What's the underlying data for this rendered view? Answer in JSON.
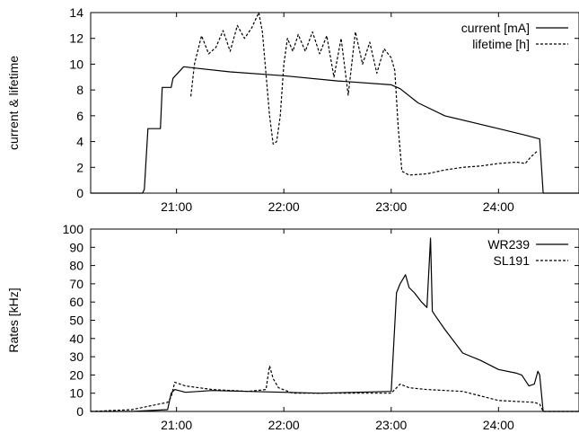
{
  "chart_data": [
    {
      "type": "line",
      "xlabel": "",
      "ylabel": "current & lifetime",
      "x_unit": "time",
      "xlim": [
        "20:12",
        "24:45"
      ],
      "ylim": [
        0,
        14
      ],
      "x_ticks": [
        "21:00",
        "22:00",
        "23:00",
        "24:00"
      ],
      "y_ticks": [
        "0",
        "2",
        "4",
        "6",
        "8",
        "10",
        "12",
        "14"
      ],
      "grid": false,
      "legend_position": "top-right",
      "series": [
        {
          "name": "current [mA]",
          "style": "solid",
          "x": [
            "20:12",
            "20:41",
            "20:42",
            "20:44",
            "20:51",
            "20:52",
            "20:57",
            "20:58",
            "21:04",
            "21:10",
            "21:30",
            "22:00",
            "22:30",
            "23:00",
            "23:05",
            "23:15",
            "23:30",
            "24:00",
            "24:15",
            "24:23",
            "24:25",
            "24:45"
          ],
          "y": [
            0,
            0,
            0.3,
            5.0,
            5.0,
            8.2,
            8.2,
            8.9,
            9.8,
            9.7,
            9.4,
            9.1,
            8.7,
            8.4,
            8.1,
            7.0,
            6.0,
            5.0,
            4.5,
            4.2,
            0,
            0
          ]
        },
        {
          "name": "lifetime [h]",
          "style": "dashed",
          "x": [
            "21:08",
            "21:10",
            "21:14",
            "21:18",
            "21:22",
            "21:26",
            "21:30",
            "21:34",
            "21:38",
            "21:42",
            "21:46",
            "21:48",
            "21:52",
            "21:54",
            "21:56",
            "21:58",
            "22:00",
            "22:02",
            "22:05",
            "22:08",
            "22:12",
            "22:16",
            "22:20",
            "22:24",
            "22:28",
            "22:32",
            "22:36",
            "22:40",
            "22:44",
            "22:48",
            "22:52",
            "22:56",
            "23:00",
            "23:02",
            "23:04",
            "23:06",
            "23:10",
            "23:20",
            "23:30",
            "23:40",
            "23:50",
            "24:00",
            "24:10",
            "24:15",
            "24:18",
            "24:22"
          ],
          "y": [
            7.5,
            10.0,
            12.2,
            10.8,
            11.3,
            12.6,
            11.0,
            13.0,
            12.0,
            12.8,
            14.0,
            12.5,
            6.0,
            3.8,
            4.0,
            6.0,
            10.0,
            12.0,
            11.0,
            12.3,
            11.0,
            12.5,
            10.8,
            12.2,
            9.0,
            12.0,
            7.6,
            12.5,
            10.0,
            11.7,
            9.3,
            11.2,
            10.5,
            9.5,
            5.0,
            1.7,
            1.4,
            1.5,
            1.8,
            2.0,
            2.1,
            2.3,
            2.4,
            2.3,
            2.8,
            3.3
          ]
        }
      ]
    },
    {
      "type": "line",
      "xlabel": "",
      "ylabel": "Rates [kHz]",
      "x_unit": "time",
      "xlim": [
        "20:12",
        "24:45"
      ],
      "ylim": [
        0,
        100
      ],
      "x_ticks": [
        "21:00",
        "22:00",
        "23:00",
        "24:00"
      ],
      "y_ticks": [
        "0",
        "10",
        "20",
        "30",
        "40",
        "50",
        "60",
        "70",
        "80",
        "90",
        "100"
      ],
      "grid": false,
      "legend_position": "top-right",
      "series": [
        {
          "name": "WR239",
          "style": "solid",
          "x": [
            "20:12",
            "20:35",
            "20:55",
            "20:57",
            "20:59",
            "21:05",
            "21:20",
            "21:40",
            "22:00",
            "22:20",
            "22:40",
            "23:00",
            "23:03",
            "23:05",
            "23:08",
            "23:10",
            "23:13",
            "23:17",
            "23:20",
            "23:22",
            "23:23",
            "23:25",
            "23:30",
            "23:40",
            "23:50",
            "24:00",
            "24:10",
            "24:13",
            "24:17",
            "24:20",
            "24:22",
            "24:23",
            "24:25",
            "24:45"
          ],
          "y": [
            0,
            0,
            1,
            10,
            12,
            10.5,
            11.5,
            11.0,
            10.5,
            10.0,
            10.5,
            11.0,
            65,
            70,
            75,
            68,
            65,
            60,
            57,
            95,
            55,
            52,
            45,
            32,
            28,
            23,
            21,
            20,
            14,
            15,
            22,
            20,
            0,
            0
          ]
        },
        {
          "name": "SL191",
          "style": "dashed",
          "x": [
            "20:12",
            "20:35",
            "20:45",
            "20:55",
            "20:57",
            "20:59",
            "21:05",
            "21:20",
            "21:40",
            "21:50",
            "21:52",
            "21:54",
            "21:57",
            "22:05",
            "22:30",
            "23:00",
            "23:05",
            "23:10",
            "23:20",
            "23:40",
            "24:00",
            "24:20",
            "24:23",
            "24:25",
            "24:45"
          ],
          "y": [
            0,
            1,
            3,
            5,
            8,
            16,
            14,
            12,
            11,
            12,
            25,
            18,
            13,
            10,
            10,
            10,
            15,
            13,
            12,
            11,
            6,
            5,
            4,
            0,
            0
          ]
        }
      ]
    }
  ]
}
